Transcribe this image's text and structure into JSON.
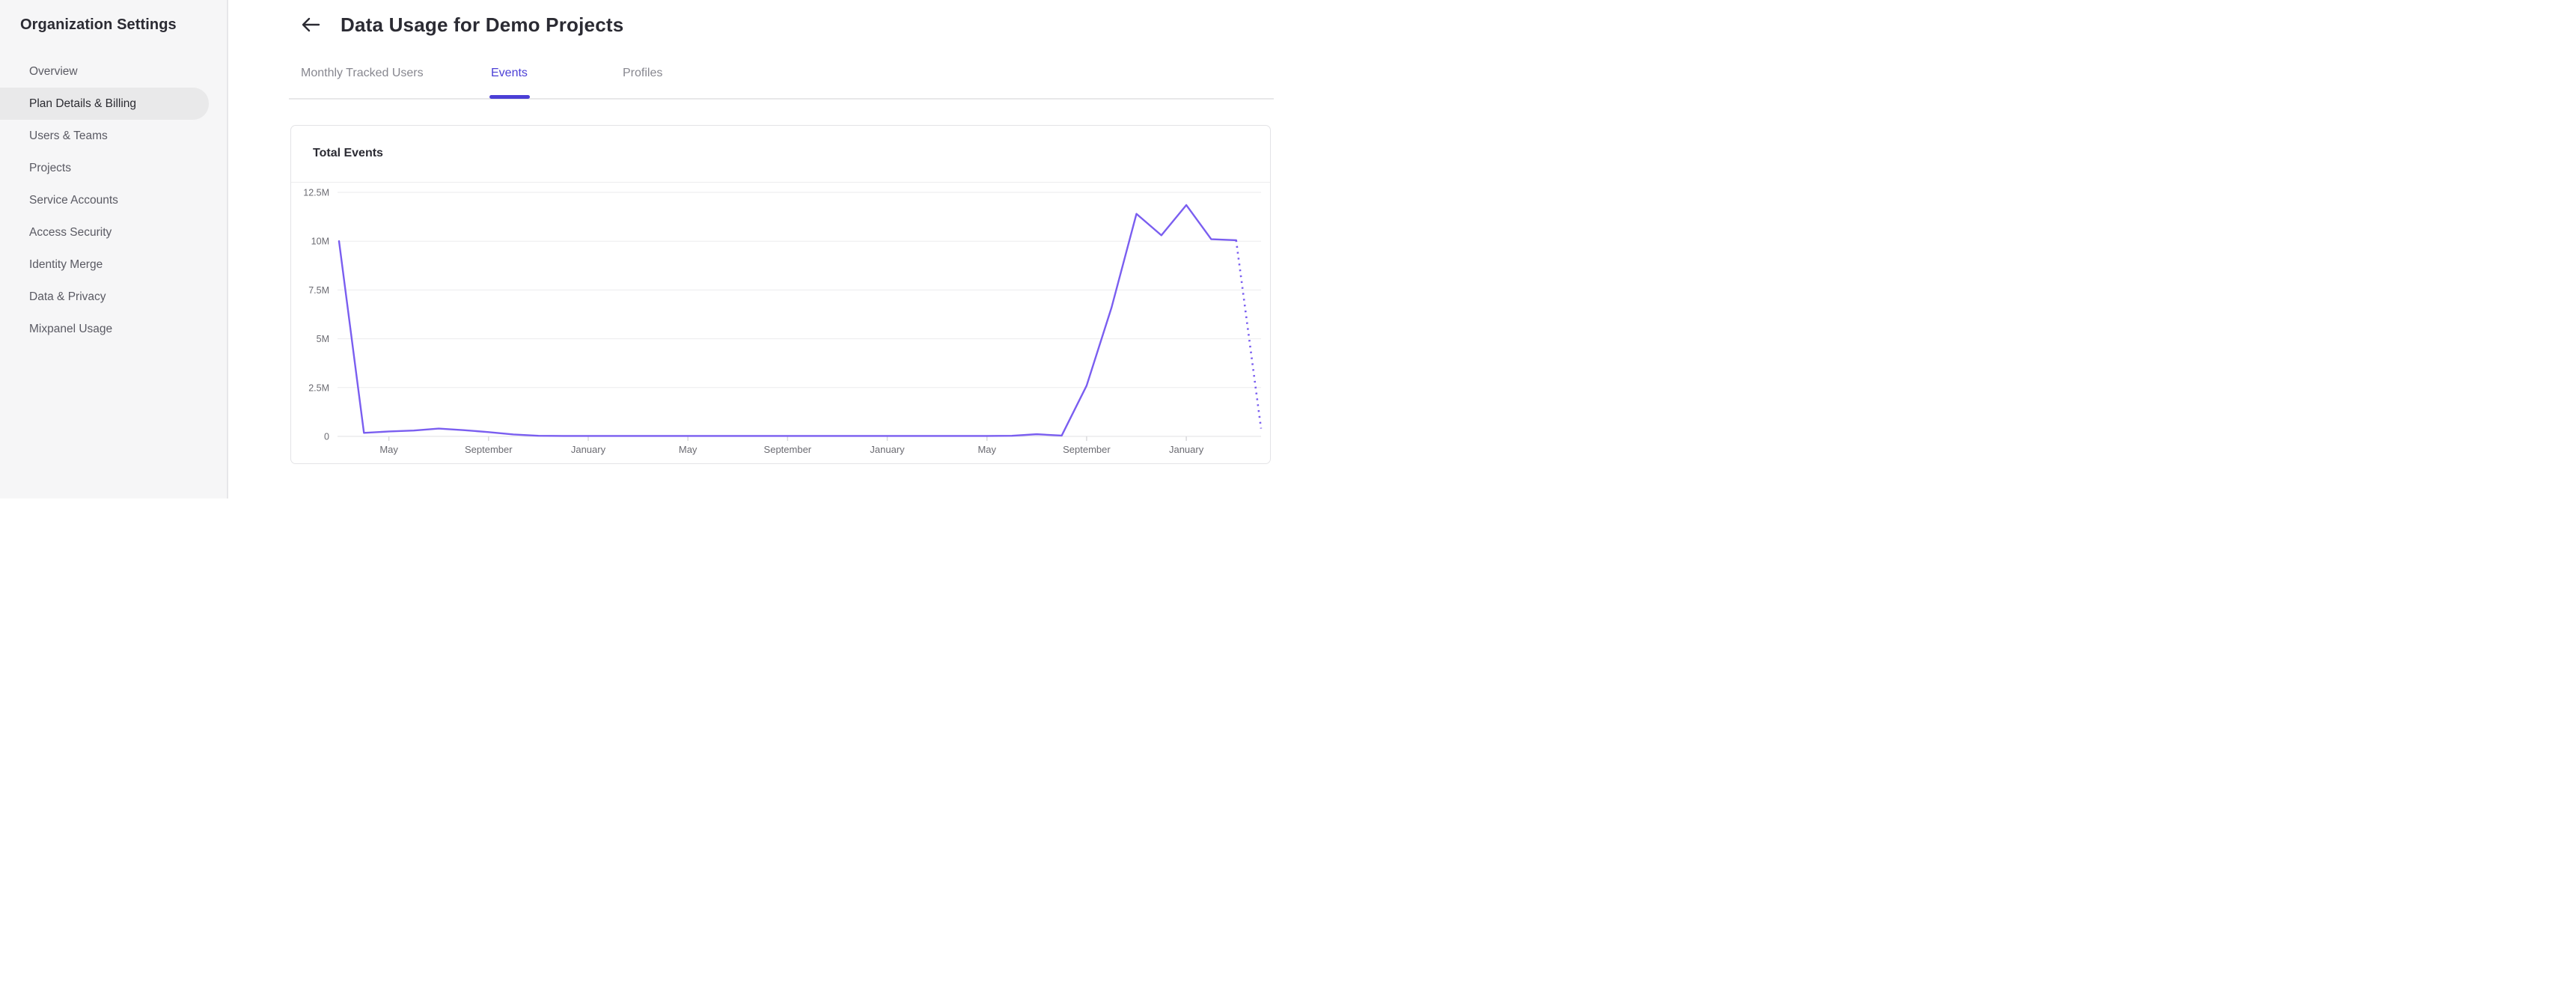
{
  "sidebar": {
    "title": "Organization Settings",
    "items": [
      {
        "label": "Overview",
        "selected": false
      },
      {
        "label": "Plan Details & Billing",
        "selected": true
      },
      {
        "label": "Users & Teams",
        "selected": false
      },
      {
        "label": "Projects",
        "selected": false
      },
      {
        "label": "Service Accounts",
        "selected": false
      },
      {
        "label": "Access Security",
        "selected": false
      },
      {
        "label": "Identity Merge",
        "selected": false
      },
      {
        "label": "Data & Privacy",
        "selected": false
      },
      {
        "label": "Mixpanel Usage",
        "selected": false
      }
    ]
  },
  "header": {
    "title": "Data Usage for Demo Projects",
    "back_icon": "left-arrow"
  },
  "tabs": [
    {
      "label": "Monthly Tracked Users",
      "active": false
    },
    {
      "label": "Events",
      "active": true
    },
    {
      "label": "Profiles",
      "active": false
    }
  ],
  "card": {
    "title": "Total Events"
  },
  "chart_data": {
    "type": "line",
    "title": "Total Events",
    "ylabel": "",
    "xlabel": "",
    "ylim": [
      0,
      12500000
    ],
    "grid": true,
    "legend": false,
    "y_ticks": [
      {
        "value": 12500000,
        "label": "12.5M"
      },
      {
        "value": 10000000,
        "label": "10M"
      },
      {
        "value": 7500000,
        "label": "7.5M"
      },
      {
        "value": 5000000,
        "label": "5M"
      },
      {
        "value": 2500000,
        "label": "2.5M"
      },
      {
        "value": 0,
        "label": "0"
      }
    ],
    "x_ticks": [
      {
        "index": 2,
        "label": "May"
      },
      {
        "index": 6,
        "label": "September"
      },
      {
        "index": 10,
        "label": "January"
      },
      {
        "index": 14,
        "label": "May"
      },
      {
        "index": 18,
        "label": "September"
      },
      {
        "index": 22,
        "label": "January"
      },
      {
        "index": 26,
        "label": "May"
      },
      {
        "index": 30,
        "label": "September"
      },
      {
        "index": 34,
        "label": "January"
      }
    ],
    "series": [
      {
        "name": "Total Events",
        "color": "#7a5ef0",
        "dotted_from_index": 36,
        "values": [
          10000000,
          180000,
          250000,
          300000,
          400000,
          320000,
          220000,
          100000,
          30000,
          20000,
          20000,
          20000,
          20000,
          20000,
          20000,
          20000,
          20000,
          20000,
          20000,
          20000,
          20000,
          20000,
          20000,
          20000,
          20000,
          20000,
          20000,
          30000,
          110000,
          40000,
          2600000,
          6600000,
          11400000,
          10300000,
          11850000,
          10100000,
          10050000,
          400000
        ]
      }
    ]
  }
}
